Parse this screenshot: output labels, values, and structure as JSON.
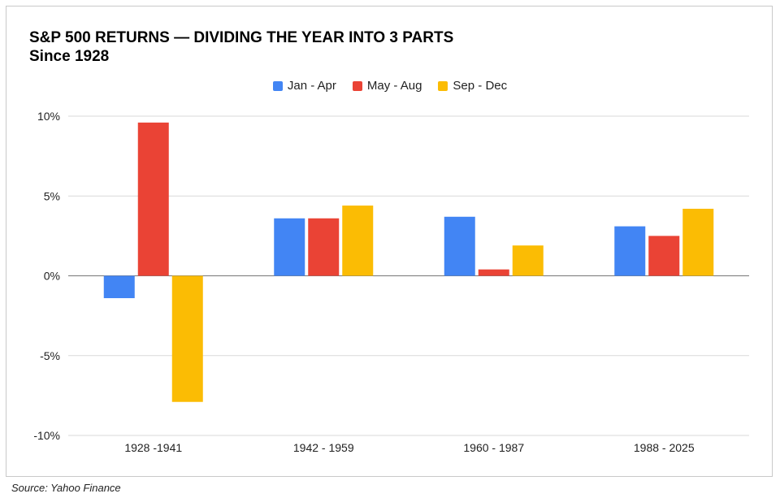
{
  "chart_data": {
    "type": "bar",
    "title": "S&P 500 RETURNS — DIVIDING THE YEAR INTO 3 PARTS",
    "subtitle": "Since 1928",
    "categories": [
      "1928 -1941",
      "1942 - 1959",
      "1960 - 1987",
      "1988 - 2025"
    ],
    "series": [
      {
        "name": "Jan - Apr",
        "color": "#4285f4",
        "values": [
          -1.4,
          3.6,
          3.7,
          3.1
        ]
      },
      {
        "name": "May - Aug",
        "color": "#ea4335",
        "values": [
          9.6,
          3.6,
          0.4,
          2.5
        ]
      },
      {
        "name": "Sep - Dec",
        "color": "#fbbc04",
        "values": [
          -7.9,
          4.4,
          1.9,
          4.2
        ]
      }
    ],
    "ylim": [
      -10,
      10
    ],
    "yticks": [
      10,
      5,
      0,
      -5,
      -10
    ],
    "ytick_labels": [
      "10%",
      "5%",
      "0%",
      "-5%",
      "-10%"
    ],
    "legend_position": "top-center",
    "grid": true
  },
  "source": "Source: Yahoo Finance"
}
